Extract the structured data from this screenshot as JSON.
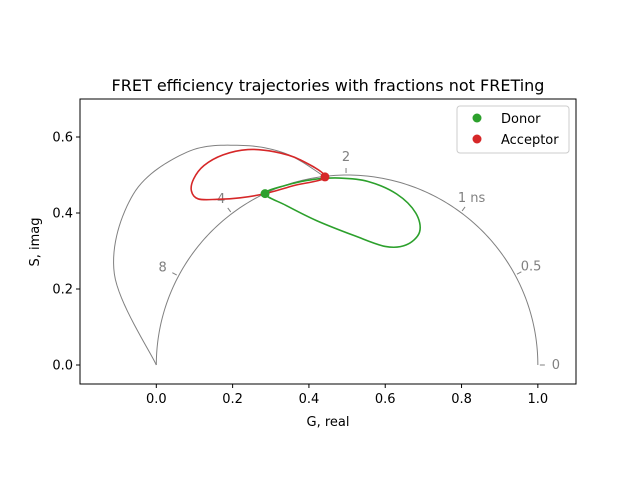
{
  "chart_data": {
    "type": "line",
    "title": "FRET efficiency trajectories with fractions not FRETing",
    "xlabel": "G, real",
    "ylabel": "S, imag",
    "xlim": [
      -0.2,
      1.1
    ],
    "ylim": [
      -0.05,
      0.7
    ],
    "x_ticks": [
      0.0,
      0.2,
      0.4,
      0.6,
      0.8,
      1.0
    ],
    "y_ticks": [
      0.0,
      0.2,
      0.4,
      0.6
    ],
    "x_tick_labels": [
      "0.0",
      "0.2",
      "0.4",
      "0.6",
      "0.8",
      "1.0"
    ],
    "y_tick_labels": [
      "0.0",
      "0.2",
      "0.4",
      "0.6"
    ],
    "grid": false,
    "legend_position": "top-right",
    "colors": {
      "donor": "#2ca02c",
      "acceptor": "#d62728",
      "reference": "#808080"
    },
    "reference_lifetime_labels": [
      {
        "label": "0",
        "lifetime": 0
      },
      {
        "label": "0.5",
        "lifetime": 0.5
      },
      {
        "label": "1 ns",
        "lifetime": 1
      },
      {
        "label": "2",
        "lifetime": 2
      },
      {
        "label": "4",
        "lifetime": 4
      },
      {
        "label": "8",
        "lifetime": 8
      }
    ],
    "series": [
      {
        "name": "Donor",
        "color": "#2ca02c",
        "marker": {
          "x": 0.285,
          "y": 0.451
        },
        "trajectory": [
          [
            0.285,
            0.451
          ],
          [
            0.34,
            0.42
          ],
          [
            0.42,
            0.38
          ],
          [
            0.52,
            0.34
          ],
          [
            0.6,
            0.312
          ],
          [
            0.655,
            0.316
          ],
          [
            0.69,
            0.35
          ],
          [
            0.68,
            0.4
          ],
          [
            0.63,
            0.45
          ],
          [
            0.555,
            0.483
          ],
          [
            0.48,
            0.492
          ],
          [
            0.41,
            0.488
          ],
          [
            0.34,
            0.473
          ],
          [
            0.285,
            0.451
          ]
        ]
      },
      {
        "name": "Acceptor",
        "color": "#d62728",
        "marker": {
          "x": 0.442,
          "y": 0.495
        },
        "trajectory": [
          [
            0.442,
            0.495
          ],
          [
            0.36,
            0.472
          ],
          [
            0.285,
            0.451
          ],
          [
            0.22,
            0.44
          ],
          [
            0.16,
            0.436
          ],
          [
            0.11,
            0.437
          ],
          [
            0.092,
            0.458
          ],
          [
            0.098,
            0.49
          ],
          [
            0.125,
            0.525
          ],
          [
            0.175,
            0.553
          ],
          [
            0.24,
            0.567
          ],
          [
            0.31,
            0.561
          ],
          [
            0.375,
            0.541
          ],
          [
            0.442,
            0.495
          ]
        ]
      }
    ]
  }
}
